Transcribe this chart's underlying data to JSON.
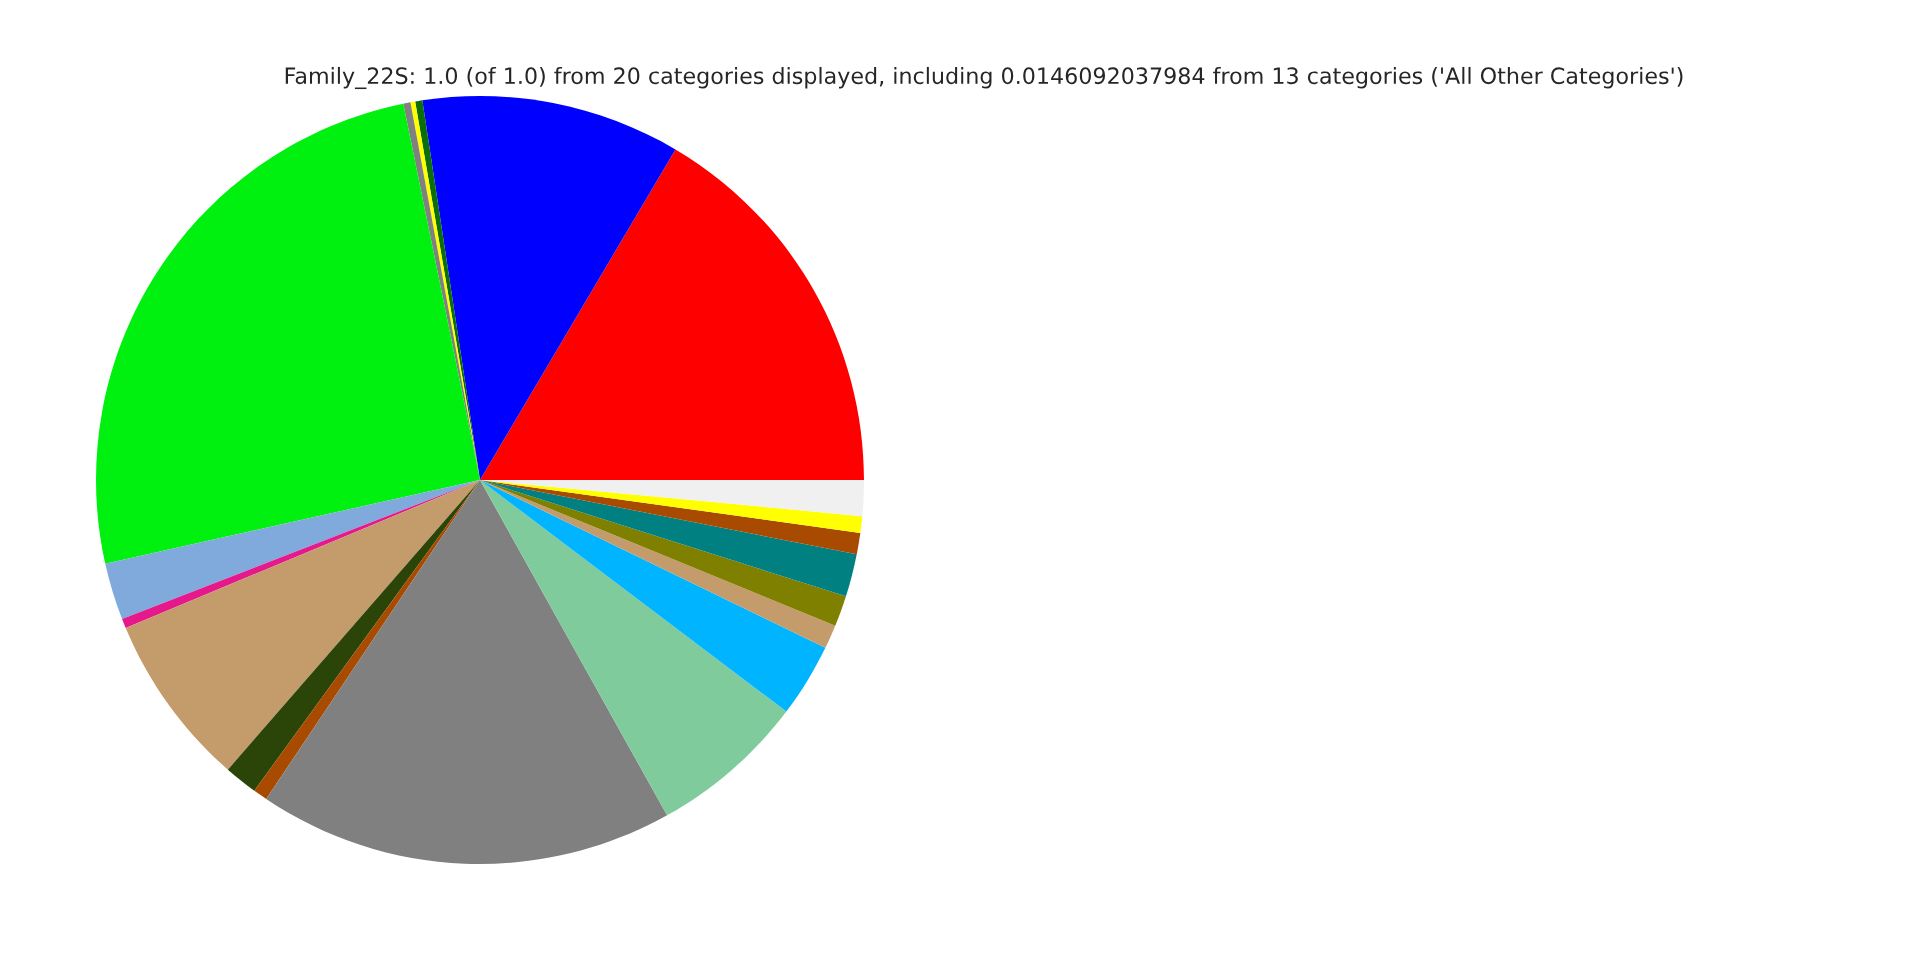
{
  "chart_data": {
    "type": "pie",
    "title": "Family_22S: 1.0 (of 1.0) from 20 categories displayed, including 0.0146092037984 from 13 categories ('All Other Categories')",
    "categories": [
      null,
      null,
      null,
      null,
      null,
      null,
      null,
      null,
      null,
      null,
      null,
      null,
      null,
      null,
      null,
      null,
      null,
      null,
      null,
      null
    ],
    "values": [
      16.5,
      10.9,
      0.3,
      0.2,
      0.3,
      25.3,
      2.4,
      0.4,
      7.3,
      1.4,
      0.6,
      17.5,
      6.6,
      3.1,
      1.0,
      1.3,
      1.8,
      0.9,
      0.7,
      1.5
    ],
    "colors": [
      "#ff0000",
      "#0000ff",
      "#0a6e0a",
      "#ffff00",
      "#808080",
      "#00f010",
      "#80aadc",
      "#e6198c",
      "#c49c6b",
      "#2b4508",
      "#a84a00",
      "#808080",
      "#80cb9c",
      "#00b4ff",
      "#c49c6b",
      "#808000",
      "#008080",
      "#a84a00",
      "#ffff00",
      "#f0f0f0"
    ]
  }
}
